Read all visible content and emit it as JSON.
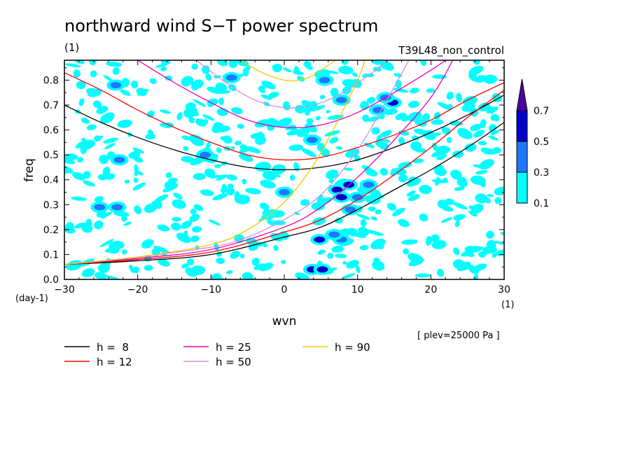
{
  "chart_data": {
    "type": "contour",
    "title": "northward wind S−T power spectrum",
    "units_left": "(1)",
    "run_label": "T39L48_non_control",
    "xlabel": "wvn",
    "ylabel": "freq",
    "y_unit": "(day-1)",
    "x_unit": "(1)",
    "xlim": [
      -30,
      30
    ],
    "ylim": [
      0,
      0.88
    ],
    "x_ticks": [
      "−30",
      "−20",
      "−10",
      "0",
      "10",
      "20",
      "30"
    ],
    "y_ticks": [
      "0.0",
      "0.1",
      "0.2",
      "0.3",
      "0.4",
      "0.5",
      "0.6",
      "0.7",
      "0.8"
    ],
    "pressure_note": "[ plev=25000 Pa ]",
    "colorbar": {
      "levels": [
        "0.1",
        "0.3",
        "0.5",
        "0.7"
      ],
      "colors": [
        "#00ffff",
        "#1e78ff",
        "#0000c8",
        "#5000a0"
      ]
    },
    "dispersion_curves": [
      {
        "label": "h =  8",
        "color": "#000000"
      },
      {
        "label": "h = 12",
        "color": "#ff0000"
      },
      {
        "label": "h = 25",
        "color": "#e600b4"
      },
      {
        "label": "h = 50",
        "color": "#dc8cdc"
      },
      {
        "label": "h = 90",
        "color": "#f0c800"
      }
    ],
    "series": [
      {
        "name": "h =  8",
        "kind": "rossby_gravity",
        "color": "#000000",
        "points": [
          [
            -30,
            0.7
          ],
          [
            -25,
            0.63
          ],
          [
            -20,
            0.57
          ],
          [
            -15,
            0.52
          ],
          [
            -10,
            0.48
          ],
          [
            -5,
            0.45
          ],
          [
            0,
            0.44
          ],
          [
            5,
            0.45
          ],
          [
            10,
            0.48
          ],
          [
            15,
            0.53
          ],
          [
            20,
            0.59
          ],
          [
            25,
            0.66
          ],
          [
            30,
            0.74
          ]
        ]
      },
      {
        "name": "h =  8",
        "kind": "kelvin",
        "color": "#000000",
        "points": [
          [
            -30,
            0.06
          ],
          [
            -20,
            0.075
          ],
          [
            -10,
            0.1
          ],
          [
            0,
            0.17
          ],
          [
            5,
            0.21
          ],
          [
            10,
            0.28
          ],
          [
            15,
            0.36
          ],
          [
            20,
            0.44
          ],
          [
            25,
            0.53
          ],
          [
            30,
            0.63
          ]
        ]
      },
      {
        "name": "h = 12",
        "kind": "rossby_gravity",
        "color": "#ff0000",
        "points": [
          [
            -30,
            0.83
          ],
          [
            -25,
            0.76
          ],
          [
            -20,
            0.68
          ],
          [
            -15,
            0.61
          ],
          [
            -10,
            0.55
          ],
          [
            -5,
            0.5
          ],
          [
            0,
            0.48
          ],
          [
            5,
            0.49
          ],
          [
            10,
            0.53
          ],
          [
            15,
            0.58
          ],
          [
            20,
            0.64
          ],
          [
            25,
            0.72
          ],
          [
            30,
            0.79
          ]
        ]
      },
      {
        "name": "h = 12",
        "kind": "kelvin",
        "color": "#ff0000",
        "points": [
          [
            -30,
            0.06
          ],
          [
            -20,
            0.08
          ],
          [
            -10,
            0.11
          ],
          [
            0,
            0.19
          ],
          [
            5,
            0.24
          ],
          [
            10,
            0.32
          ],
          [
            15,
            0.42
          ],
          [
            20,
            0.53
          ],
          [
            25,
            0.65
          ],
          [
            30,
            0.76
          ]
        ]
      },
      {
        "name": "h = 25",
        "kind": "rossby_gravity",
        "color": "#e600b4",
        "points": [
          [
            -20,
            0.88
          ],
          [
            -15,
            0.79
          ],
          [
            -10,
            0.71
          ],
          [
            -5,
            0.64
          ],
          [
            0,
            0.61
          ],
          [
            5,
            0.62
          ],
          [
            10,
            0.67
          ],
          [
            15,
            0.75
          ],
          [
            20,
            0.84
          ],
          [
            22,
            0.88
          ]
        ]
      },
      {
        "name": "h = 25",
        "kind": "kelvin",
        "color": "#e600b4",
        "points": [
          [
            -30,
            0.06
          ],
          [
            -20,
            0.085
          ],
          [
            -10,
            0.12
          ],
          [
            0,
            0.21
          ],
          [
            5,
            0.29
          ],
          [
            10,
            0.41
          ],
          [
            15,
            0.56
          ],
          [
            20,
            0.73
          ],
          [
            23,
            0.88
          ]
        ]
      },
      {
        "name": "h = 50",
        "kind": "rossby_gravity",
        "color": "#dc8cdc",
        "points": [
          [
            -12,
            0.88
          ],
          [
            -8,
            0.79
          ],
          [
            -4,
            0.72
          ],
          [
            0,
            0.69
          ],
          [
            4,
            0.7
          ],
          [
            8,
            0.75
          ],
          [
            12,
            0.83
          ],
          [
            14,
            0.88
          ]
        ]
      },
      {
        "name": "h = 50",
        "kind": "kelvin",
        "color": "#dc8cdc",
        "points": [
          [
            -30,
            0.06
          ],
          [
            -20,
            0.09
          ],
          [
            -10,
            0.13
          ],
          [
            -5,
            0.17
          ],
          [
            0,
            0.24
          ],
          [
            5,
            0.34
          ],
          [
            10,
            0.52
          ],
          [
            14,
            0.72
          ],
          [
            17,
            0.88
          ]
        ]
      },
      {
        "name": "h = 90",
        "kind": "rossby_gravity",
        "color": "#f0c800",
        "points": [
          [
            -6,
            0.88
          ],
          [
            -3,
            0.83
          ],
          [
            0,
            0.8
          ],
          [
            2,
            0.8
          ],
          [
            4,
            0.82
          ],
          [
            6,
            0.86
          ],
          [
            7,
            0.88
          ]
        ]
      },
      {
        "name": "h = 90",
        "kind": "kelvin",
        "color": "#f0c800",
        "points": [
          [
            -30,
            0.06
          ],
          [
            -20,
            0.09
          ],
          [
            -10,
            0.14
          ],
          [
            -5,
            0.2
          ],
          [
            0,
            0.31
          ],
          [
            4,
            0.46
          ],
          [
            7,
            0.62
          ],
          [
            10,
            0.8
          ],
          [
            11,
            0.88
          ]
        ]
      }
    ],
    "power_regions": [
      {
        "x": 4.8,
        "y": 0.16,
        "level": "0.5"
      },
      {
        "x": 3.8,
        "y": 0.04,
        "level": "0.5"
      },
      {
        "x": 5.2,
        "y": 0.04,
        "level": "0.5"
      },
      {
        "x": 7.2,
        "y": 0.36,
        "level": "0.5"
      },
      {
        "x": 7.8,
        "y": 0.33,
        "level": "0.5"
      },
      {
        "x": 8.8,
        "y": 0.38,
        "level": "0.5"
      },
      {
        "x": 14.8,
        "y": 0.71,
        "level": "0.5"
      },
      {
        "x": 10.0,
        "y": 0.33,
        "level": "0.3"
      },
      {
        "x": 11.5,
        "y": 0.38,
        "level": "0.3"
      },
      {
        "x": 9.0,
        "y": 0.28,
        "level": "0.3"
      },
      {
        "x": 7.8,
        "y": 0.16,
        "level": "0.3"
      },
      {
        "x": 6.8,
        "y": 0.18,
        "level": "0.3"
      },
      {
        "x": 0.0,
        "y": 0.35,
        "level": "0.3"
      },
      {
        "x": 13.8,
        "y": 0.73,
        "level": "0.3"
      },
      {
        "x": -22.5,
        "y": 0.48,
        "level": "0.3"
      },
      {
        "x": -10.8,
        "y": 0.5,
        "level": "0.3"
      },
      {
        "x": 3.8,
        "y": 0.56,
        "level": "0.3"
      },
      {
        "x": 7.8,
        "y": 0.72,
        "level": "0.3"
      },
      {
        "x": 5.5,
        "y": 0.8,
        "level": "0.3"
      },
      {
        "x": -25.2,
        "y": 0.29,
        "level": "0.3"
      },
      {
        "x": -22.8,
        "y": 0.29,
        "level": "0.3"
      },
      {
        "x": 12.8,
        "y": 0.68,
        "level": "0.3"
      },
      {
        "x": -7.2,
        "y": 0.81,
        "level": "0.3"
      },
      {
        "x": -23.0,
        "y": 0.78,
        "level": "0.3"
      }
    ]
  }
}
